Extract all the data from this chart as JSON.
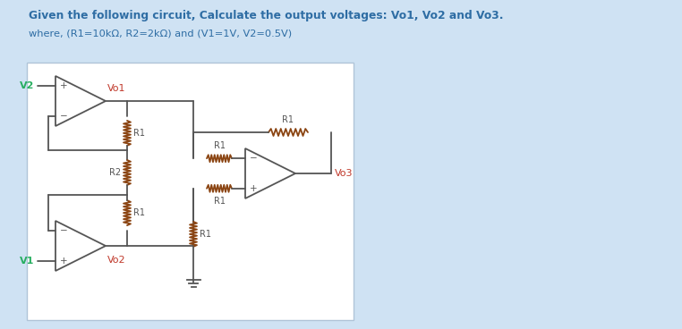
{
  "bg_outer": "#cfe2f3",
  "bg_inner": "#ffffff",
  "title": "Given the following circuit, Calculate the output voltages: Vo1, Vo2 and Vo3.",
  "subtitle": "where, (R1=10kΩ, R2=2kΩ) and (V1=1V, V2=0.5V)",
  "title_color": "#2e6da4",
  "subtitle_color": "#2e6da4",
  "label_red": "#c0392b",
  "label_green": "#27ae60",
  "label_dark": "#555555",
  "wire_color": "#555555",
  "resistor_color": "#8B4513",
  "box_edge": "#b0c4d8"
}
